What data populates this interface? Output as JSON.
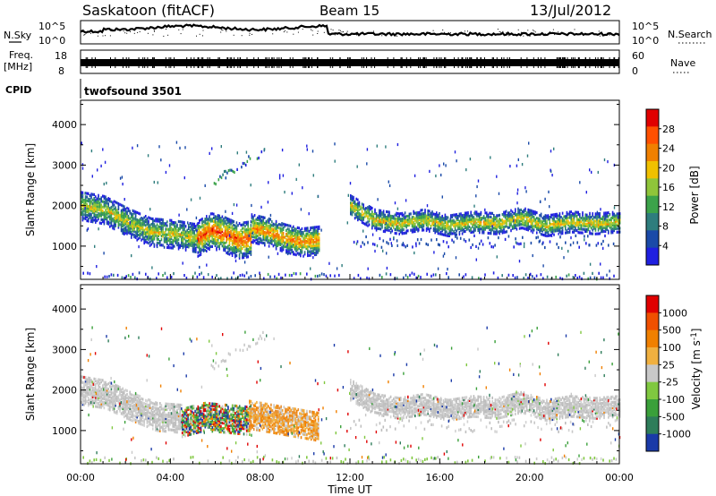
{
  "header": {
    "station": "Saskatoon (fitACF)",
    "beam": "Beam 15",
    "date": "13/Jul/2012"
  },
  "noise_panel": {
    "left_label": "N.Sky",
    "right_label": "N.Search",
    "top_tick": "10^5",
    "bottom_tick": "10^0"
  },
  "freq_panel": {
    "left_label_1": "Freq.",
    "left_label_2": "[MHz]",
    "left_top_tick": "18",
    "left_bottom_tick": "8",
    "right_label": "Nave",
    "right_top_tick": "60",
    "right_bottom_tick": "0"
  },
  "cpid_panel": {
    "label": "CPID",
    "program": "twofsound 3501"
  },
  "chart_data": [
    {
      "type": "heatmap",
      "name": "power",
      "ylabel": "Slant Range [km]",
      "yticks": [
        "1000",
        "2000",
        "3000",
        "4000"
      ],
      "ylim": [
        180,
        4600
      ],
      "x_tick_labels": [
        "00:00",
        "04:00",
        "08:00",
        "12:00",
        "16:00",
        "20:00",
        "00:00"
      ],
      "xlim_hours": [
        0,
        24
      ],
      "colorbar_label": "Power [dB]",
      "colorbar_ticks": [
        "4",
        "8",
        "12",
        "16",
        "20",
        "24",
        "28"
      ],
      "colorbar_colors": [
        "#1f1fe0",
        "#1a4aa8",
        "#2e7d7d",
        "#3ca34a",
        "#8fc53a",
        "#f0c000",
        "#f08000",
        "#ff5000",
        "#e00000"
      ],
      "bands": [
        {
          "start_h": 0.0,
          "end_h": 5.2,
          "center_km": [
            2000,
            1900,
            1600,
            1350,
            1300,
            1200
          ],
          "spread_km": 350,
          "level": 0.55
        },
        {
          "start_h": 5.2,
          "end_h": 7.6,
          "center_km": [
            1200,
            1400,
            1300,
            1150,
            1200
          ],
          "spread_km": 450,
          "level": 0.85
        },
        {
          "start_h": 7.6,
          "end_h": 10.6,
          "center_km": [
            1450,
            1350,
            1200,
            1100,
            1150
          ],
          "spread_km": 350,
          "level": 0.75
        },
        {
          "start_h": 12.0,
          "end_h": 24.0,
          "center_km": [
            2000,
            1650,
            1550,
            1650,
            1500,
            1600,
            1550,
            1700,
            1500,
            1600,
            1550,
            1600
          ],
          "spread_km": 250,
          "level": 0.6
        }
      ],
      "axis_label_x": "Time UT"
    },
    {
      "type": "heatmap",
      "name": "velocity",
      "ylabel": "Slant Range [km]",
      "yticks": [
        "1000",
        "2000",
        "3000",
        "4000"
      ],
      "ylim": [
        180,
        4600
      ],
      "x_tick_labels": [
        "00:00",
        "04:00",
        "08:00",
        "12:00",
        "16:00",
        "20:00",
        "00:00"
      ],
      "xlim_hours": [
        0,
        24
      ],
      "xlabel": "Time UT",
      "colorbar_label": "Velocity [m s^-1]",
      "colorbar_ticks": [
        "1000",
        "500",
        "100",
        "25",
        "-25",
        "-100",
        "-500",
        "-1000"
      ],
      "colorbar_colors": [
        "#1a3aa8",
        "#2e7d5a",
        "#3aa03a",
        "#80c840",
        "#c8c8c8",
        "#f0b040",
        "#f08000",
        "#f05000",
        "#e00000"
      ],
      "bands": [
        {
          "start_h": 0.0,
          "end_h": 4.5,
          "center_km": [
            2000,
            1900,
            1600,
            1350,
            1300
          ],
          "spread_km": 350,
          "tone": "gray"
        },
        {
          "start_h": 4.5,
          "end_h": 7.5,
          "center_km": [
            1200,
            1350,
            1300,
            1250
          ],
          "spread_km": 350,
          "tone": "mixed"
        },
        {
          "start_h": 7.5,
          "end_h": 10.6,
          "center_km": [
            1400,
            1300,
            1200,
            1100
          ],
          "spread_km": 350,
          "tone": "orange"
        },
        {
          "start_h": 12.0,
          "end_h": 24.0,
          "center_km": [
            2000,
            1650,
            1550,
            1650,
            1500,
            1600,
            1550,
            1700,
            1500,
            1600,
            1550,
            1600
          ],
          "spread_km": 250,
          "tone": "gray"
        }
      ]
    }
  ]
}
